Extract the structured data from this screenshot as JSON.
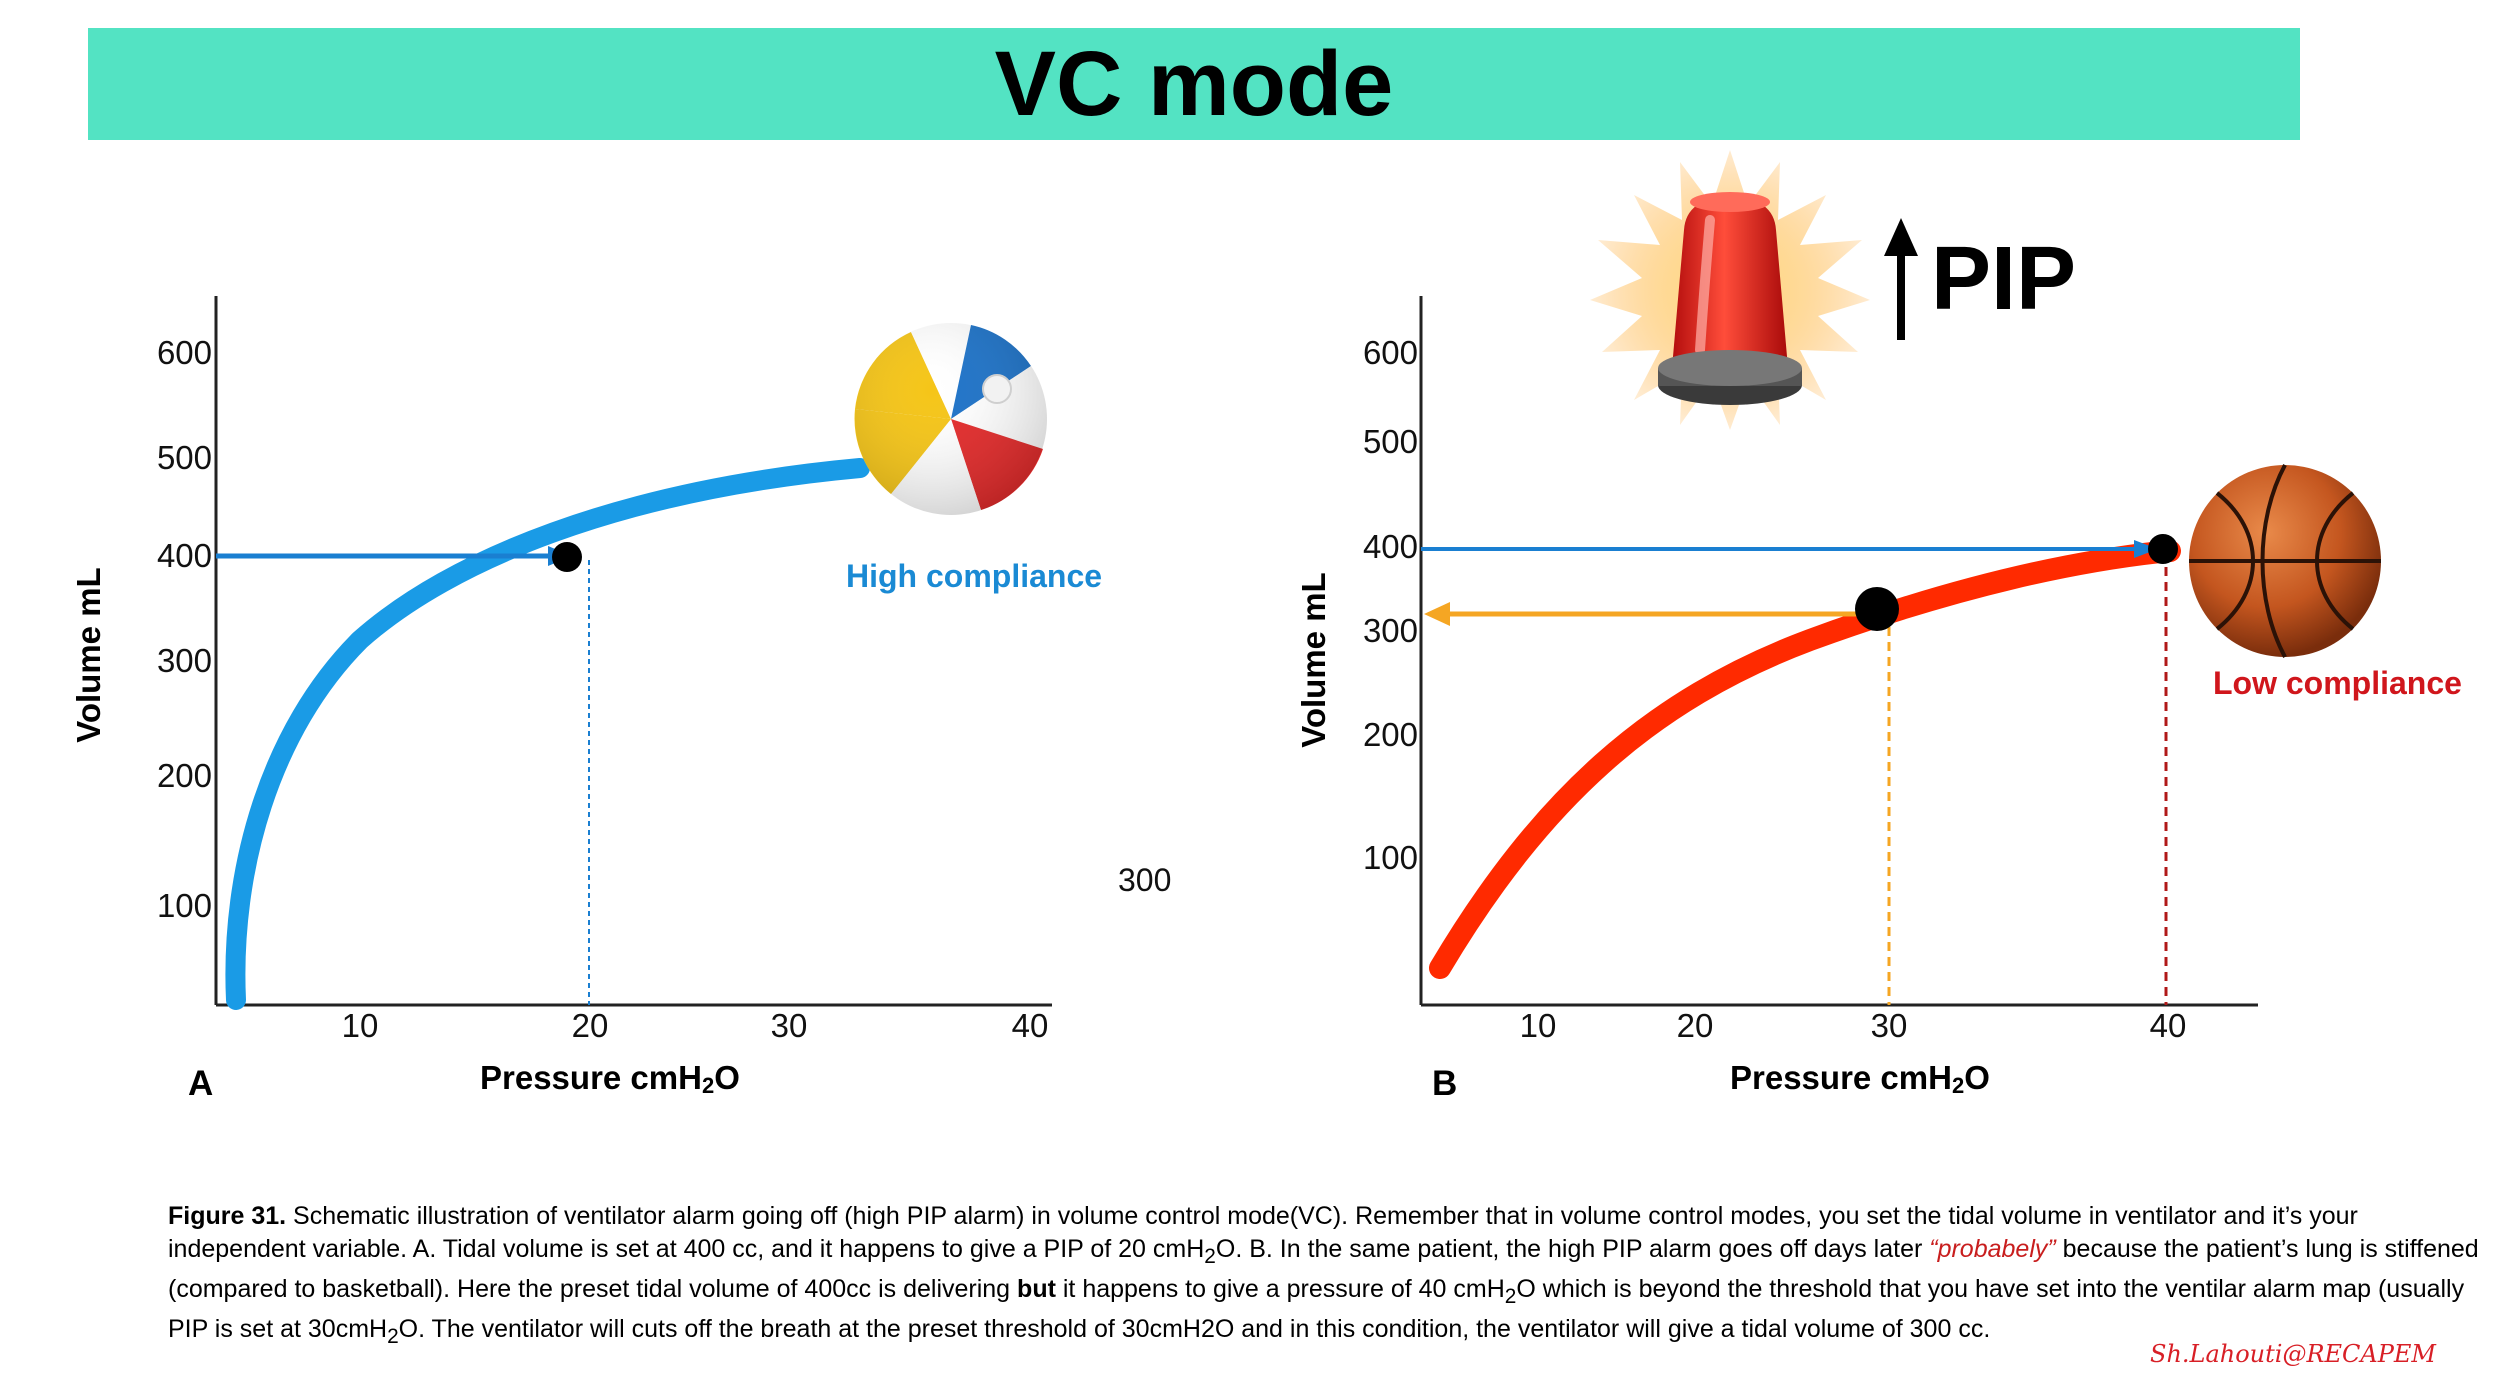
{
  "title": "VC mode",
  "panel_a": {
    "letter": "A",
    "y_axis_label": "Volume mL",
    "x_axis_label": "Pressure cmH2O",
    "x_axis_label_main": "Pressure cmH",
    "x_axis_label_sub": "2",
    "x_axis_label_end": "O",
    "y_ticks": [
      "600",
      "500",
      "400",
      "300",
      "200",
      "100"
    ],
    "x_ticks": [
      "10",
      "20",
      "30",
      "40"
    ],
    "compliance_label": "High compliance",
    "stray_label": "300",
    "curve_color": "#1a9be6",
    "object_icon": "beach-ball-icon"
  },
  "panel_b": {
    "letter": "B",
    "y_axis_label": "Volume mL",
    "x_axis_label": "Pressure cmH2O",
    "x_axis_label_main": "Pressure cmH",
    "x_axis_label_sub": "2",
    "x_axis_label_end": "O",
    "y_ticks": [
      "600",
      "500",
      "400",
      "300",
      "200",
      "100"
    ],
    "x_ticks": [
      "10",
      "20",
      "30",
      "40"
    ],
    "compliance_label": "Low compliance",
    "alarm_label": "PIP",
    "curve_color": "#ff2a00",
    "cutoff_color": "#f5a623",
    "object_icon": "basketball-icon",
    "alarm_icon": "alarm-siren-icon"
  },
  "caption": {
    "lead": "Figure 31.",
    "part1": " Schematic illustration of ventilator alarm going off (high PIP alarm) in volume control mode(VC). Remember that in volume control modes, you set the tidal volume in ventilator and it’s your independent variable. A. Tidal volume is set at 400 cc, and it happens to give a PIP of 20 cmH",
    "sub1": "2",
    "part2": "O. B. In the same patient, the high PIP alarm goes off days later ",
    "emphasis": "“probabely”",
    "part3": " because the patient’s lung is stiffened (compared to basketball). Here the preset tidal volume of 400cc is delivering ",
    "bold_word": "but",
    "part4": " it happens to give a pressure of 40 cmH",
    "sub2": "2",
    "part5": "O which is beyond the threshold that you have set into the ventilar alarm map (usually PIP is set at 30cmH",
    "sub3": "2",
    "part6": "O. The ventilator will cuts off the breath at the preset threshold of 30cmH2O and in this condition, the ventilator will give a tidal volume of 300 cc."
  },
  "signature": "Sh.Lahouti@RECAPEM"
}
